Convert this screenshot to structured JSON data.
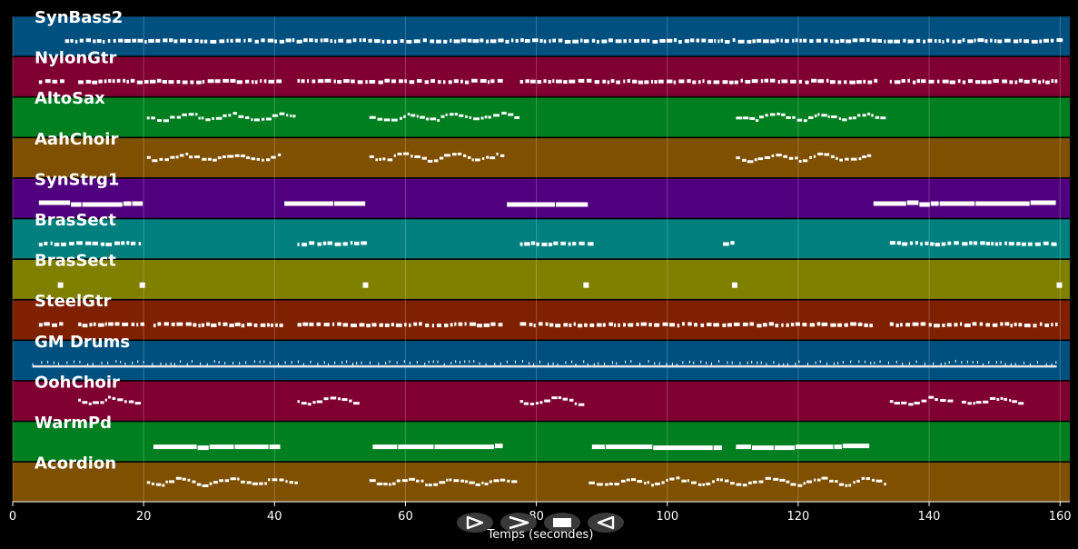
{
  "xaxis": {
    "title": "Temps (secondes)",
    "min": 0,
    "max": 161.5,
    "ticks": [
      0,
      20,
      40,
      60,
      80,
      100,
      120,
      140,
      160
    ],
    "tick_labels": [
      "0",
      "20",
      "40",
      "60",
      "80",
      "100",
      "120",
      "140",
      "160"
    ]
  },
  "tracks": [
    {
      "name": "SynBass2",
      "color": "#00507f",
      "style": "dots",
      "segments": [
        [
          8,
          159.5
        ]
      ]
    },
    {
      "name": "NylonGtr",
      "color": "#7f0030",
      "style": "dots",
      "segments": [
        [
          4,
          8
        ],
        [
          10,
          41
        ],
        [
          43.5,
          75
        ],
        [
          77.5,
          132
        ],
        [
          134,
          159.5
        ]
      ]
    },
    {
      "name": "AltoSax",
      "color": "#007f20",
      "style": "melody",
      "segments": [
        [
          20.5,
          43
        ],
        [
          54.5,
          77
        ],
        [
          110.5,
          133
        ]
      ]
    },
    {
      "name": "AahChoir",
      "color": "#7f5000",
      "style": "melody",
      "segments": [
        [
          20.5,
          41
        ],
        [
          54.5,
          75
        ],
        [
          110.5,
          131
        ]
      ]
    },
    {
      "name": "SynStrg1",
      "color": "#50007f",
      "style": "bar",
      "segments": [
        [
          4,
          20
        ],
        [
          41.5,
          54
        ],
        [
          75.5,
          88
        ],
        [
          131.5,
          159.5
        ]
      ]
    },
    {
      "name": "BrasSect",
      "color": "#007f7f",
      "style": "dots",
      "segments": [
        [
          4,
          20
        ],
        [
          43.5,
          54
        ],
        [
          77.5,
          88
        ],
        [
          108.5,
          110
        ],
        [
          134,
          159.5
        ]
      ]
    },
    {
      "name": "BrasSect",
      "color": "#7f7f00",
      "style": "points",
      "segments": [
        [
          7.3,
          7.3
        ],
        [
          19.8,
          19.8
        ],
        [
          53.9,
          53.9
        ],
        [
          87.6,
          87.6
        ],
        [
          110.3,
          110.3
        ],
        [
          159.9,
          159.9
        ]
      ]
    },
    {
      "name": "SteelGtr",
      "color": "#7f2000",
      "style": "dots",
      "segments": [
        [
          4,
          7.5
        ],
        [
          10,
          20
        ],
        [
          21.5,
          41
        ],
        [
          43.5,
          75
        ],
        [
          77.5,
          131.5
        ],
        [
          134,
          159.5
        ]
      ]
    },
    {
      "name": "GM Drums",
      "color": "#00507f",
      "style": "thin",
      "segments": [
        [
          3,
          159.5
        ]
      ]
    },
    {
      "name": "OohChoir",
      "color": "#7f0030",
      "style": "melody",
      "segments": [
        [
          10,
          19
        ],
        [
          43.5,
          52.5
        ],
        [
          77.5,
          86.5
        ],
        [
          134,
          143
        ],
        [
          145,
          154.5
        ]
      ]
    },
    {
      "name": "WarmPd",
      "color": "#007f20",
      "style": "bar",
      "segments": [
        [
          21.5,
          41
        ],
        [
          55,
          75
        ],
        [
          88.5,
          108.5
        ],
        [
          110.5,
          131
        ]
      ]
    },
    {
      "name": "Acordion",
      "color": "#7f5000",
      "style": "melody",
      "segments": [
        [
          20.5,
          43.5
        ],
        [
          54.5,
          77
        ],
        [
          88,
          133.5
        ]
      ]
    }
  ],
  "controls": [
    {
      "name": "play",
      "icon": "play-outline-icon"
    },
    {
      "name": "forward",
      "icon": "chevron-right-icon"
    },
    {
      "name": "stop",
      "icon": "stop-square-icon"
    },
    {
      "name": "rewind",
      "icon": "triangle-left-outline-icon"
    }
  ]
}
